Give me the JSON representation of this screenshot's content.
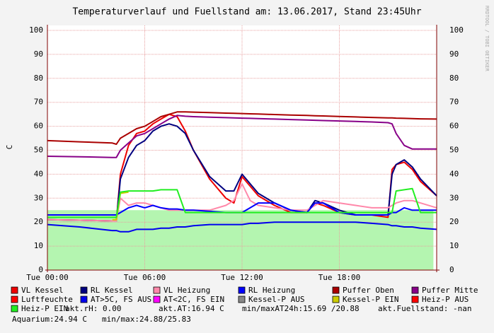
{
  "chart_data": {
    "type": "line",
    "title": "Temperaturverlauf und Fuellstand am: 13.06.2017, Stand 23:45Uhr",
    "y_label": "C",
    "watermark": "RRDTOOL / TOBI OETIKER",
    "xlim": [
      0,
      24
    ],
    "xticks": [
      {
        "value": 0,
        "label": "Tue 00:00"
      },
      {
        "value": 6,
        "label": "Tue 06:00"
      },
      {
        "value": 12,
        "label": "Tue 12:00"
      },
      {
        "value": 18,
        "label": "Tue 18:00"
      }
    ],
    "ylim": [
      0,
      100
    ],
    "yticks": [
      0,
      10,
      20,
      30,
      40,
      50,
      60,
      70,
      80,
      90,
      100
    ],
    "grid": true,
    "area": {
      "color": "#b4f5b0",
      "level": 25,
      "x": [
        0,
        23.8
      ]
    },
    "x": [
      0,
      2,
      4,
      4.25,
      4.5,
      5,
      5.5,
      6,
      6.5,
      7,
      7.5,
      8,
      8.5,
      9,
      10,
      11,
      11.5,
      12,
      12.5,
      13,
      14,
      15,
      16,
      16.5,
      17,
      18,
      19,
      20,
      21,
      21.25,
      21.5,
      22,
      22.5,
      23,
      24
    ],
    "series": [
      {
        "name": "VL Kessel",
        "color": "#ee0000",
        "values": [
          21,
          20.8,
          20.5,
          20.5,
          40,
          52,
          57,
          58,
          61,
          63,
          65,
          64,
          58,
          50,
          38,
          30,
          28,
          39,
          35,
          31,
          27,
          24,
          24,
          28,
          27,
          24,
          23,
          23,
          22,
          42,
          44,
          45,
          42,
          37,
          31
        ]
      },
      {
        "name": "RL Kessel",
        "color": "#000080",
        "values": [
          21,
          20.8,
          20.5,
          20.5,
          38,
          47,
          52,
          54,
          58,
          60,
          61,
          60,
          57,
          50,
          39,
          33,
          33,
          40,
          36,
          32,
          28,
          25,
          24,
          29,
          28,
          25,
          23,
          23,
          23,
          40,
          44,
          46,
          43,
          38,
          31
        ]
      },
      {
        "name": "VL Heizung",
        "color": "#ff88aa",
        "values": [
          21,
          20.8,
          20.5,
          20.5,
          30,
          27,
          28,
          28,
          27,
          26,
          25,
          25,
          25,
          25,
          25,
          27,
          29,
          36,
          29,
          27,
          26,
          25,
          25,
          27,
          29,
          28,
          27,
          26,
          26,
          27,
          28,
          29,
          29,
          28,
          26
        ]
      },
      {
        "name": "RL Heizung",
        "color": "#0000ff",
        "values": [
          23,
          23,
          23,
          23,
          24,
          26,
          27,
          26,
          27,
          26,
          25.5,
          25.5,
          25,
          25,
          24.5,
          24,
          24,
          24,
          26,
          28,
          28,
          25,
          24,
          28,
          28,
          24,
          23,
          23,
          23,
          24,
          24,
          26,
          25,
          25,
          25
        ]
      },
      {
        "name": "Puffer Oben",
        "color": "#aa0000",
        "values": [
          54,
          53.5,
          53,
          52.5,
          55,
          57,
          59,
          60,
          62,
          64,
          65,
          66,
          66,
          65.9,
          65.7,
          65.5,
          65.4,
          65.3,
          65.2,
          65.1,
          64.9,
          64.7,
          64.5,
          64.4,
          64.3,
          64.1,
          63.9,
          63.7,
          63.5,
          63.5,
          63.4,
          63.3,
          63.2,
          63.1,
          63
        ]
      },
      {
        "name": "Puffer Mitte",
        "color": "#880088",
        "values": [
          47.5,
          47.3,
          47,
          47,
          50,
          53,
          56,
          57,
          59,
          61,
          63,
          64.5,
          64.2,
          64,
          63.8,
          63.6,
          63.5,
          63.4,
          63.3,
          63.2,
          63,
          62.8,
          62.6,
          62.5,
          62.4,
          62.2,
          62,
          61.8,
          61.5,
          61,
          57,
          52,
          50.5,
          50.5,
          50.5
        ]
      },
      {
        "name": "Luftfeuchte",
        "color": "#ff0000",
        "values": [
          null,
          null,
          null,
          null,
          null,
          null,
          null,
          null,
          null,
          null,
          null,
          null,
          null,
          null,
          null,
          null,
          null,
          null,
          null,
          null,
          null,
          null,
          null,
          null,
          null,
          null,
          null,
          null,
          null,
          null,
          null,
          null,
          null,
          null,
          null
        ]
      },
      {
        "name": "AT>5C, FS AUS",
        "color": "#0000ee",
        "values": [
          19,
          18,
          16.5,
          16.5,
          16,
          16,
          17,
          17,
          17,
          17.5,
          17.5,
          18,
          18,
          18.5,
          19,
          19,
          19,
          19,
          19.5,
          19.5,
          20,
          20,
          20,
          20,
          20,
          20,
          20,
          19.5,
          19,
          18.5,
          18.5,
          18,
          18,
          17.5,
          17
        ]
      },
      {
        "name": "AT<2C, FS EIN",
        "color": "#ff00ff",
        "values": [
          null,
          null,
          null,
          null,
          null,
          null,
          null,
          null,
          null,
          null,
          null,
          null,
          null,
          null,
          null,
          null,
          null,
          null,
          null,
          null,
          null,
          null,
          null,
          null,
          null,
          null,
          null,
          null,
          null,
          null,
          null,
          null,
          null,
          null,
          null
        ]
      },
      {
        "name": "Kessel-P AUS",
        "color": "#888888",
        "values": [
          null,
          null,
          null,
          null,
          null,
          null,
          null,
          null,
          null,
          null,
          null,
          null,
          null,
          null,
          null,
          null,
          null,
          null,
          null,
          null,
          null,
          null,
          null,
          null,
          null,
          null,
          null,
          null,
          null,
          null,
          null,
          null,
          null,
          null,
          null
        ]
      },
      {
        "name": "Kessel-P EIN",
        "color": "#cccc00",
        "values": [
          null,
          null,
          21,
          21,
          32,
          32.5,
          null,
          null,
          null,
          null,
          null,
          null,
          null,
          null,
          null,
          null,
          null,
          null,
          null,
          null,
          null,
          null,
          null,
          null,
          null,
          null,
          null,
          null,
          null,
          null,
          null,
          null,
          null,
          null,
          null
        ]
      },
      {
        "name": "Heiz-P AUS",
        "color": "#ff0000",
        "values": [
          null,
          null,
          null,
          null,
          null,
          null,
          null,
          null,
          null,
          null,
          null,
          null,
          null,
          null,
          null,
          null,
          null,
          null,
          null,
          null,
          null,
          null,
          null,
          null,
          null,
          null,
          null,
          null,
          null,
          null,
          null,
          null,
          null,
          null,
          null
        ]
      },
      {
        "name": "Heiz-P EIN",
        "color": "#22ee22",
        "values": [
          22,
          22,
          22,
          22,
          32.5,
          33,
          33,
          33,
          33,
          33.5,
          33.5,
          33.5,
          24,
          24,
          24,
          24,
          24,
          24,
          24,
          24,
          24,
          24,
          24,
          24,
          24,
          24,
          24,
          24,
          24,
          24,
          33,
          33.5,
          34,
          24,
          24
        ]
      }
    ],
    "status": [
      "akt.rH: 0.00",
      "akt.AT:16.94 C",
      "min/maxAT24h:15.69 /20.88",
      "akt.Fuellstand: -nan",
      "Aquarium:24.94 C",
      "min/max:24.88/25.83"
    ]
  }
}
